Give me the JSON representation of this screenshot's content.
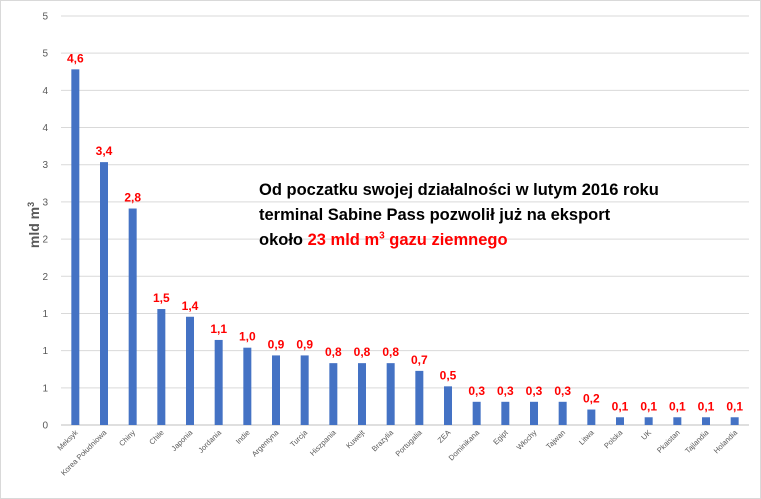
{
  "colors": {
    "bar": "#4472c4",
    "data_label": "#ff0000",
    "highlight": "#ff0000",
    "grid": "#d9d9d9"
  },
  "annotation": {
    "line1": "Od poczatku swojej działalności w lutym 2016 roku",
    "line2": "terminal Sabine Pass pozwolił już na eksport",
    "line3_prefix": "około ",
    "line3_highlight": "23 mld m",
    "line3_superscript": "3",
    "line3_suffix": " gazu ziemnego"
  },
  "chart_data": {
    "type": "bar",
    "title": "",
    "xlabel": "",
    "ylabel": "mld m",
    "ylabel_superscript": "3",
    "ylim": [
      0,
      5.29
    ],
    "grid": true,
    "legend": "none",
    "ytick_labels": [
      "0",
      "1",
      "1",
      "1",
      "2",
      "2",
      "3",
      "3",
      "4",
      "4",
      "5",
      "5"
    ],
    "categories": [
      "Meksyk",
      "Korea Południowa",
      "Chiny",
      "Chile",
      "Japonia",
      "Jordania",
      "Indie",
      "Argentyna",
      "Turcja",
      "Hiszpania",
      "Kuwejt",
      "Brazylia",
      "Portugalia",
      "ZEA",
      "Dominikana",
      "Egipt",
      "Włochy",
      "Tajwan",
      "Litwa",
      "Polska",
      "UK",
      "Pkaistan",
      "Tajlandia",
      "Holandia"
    ],
    "values": [
      4.6,
      3.4,
      2.8,
      1.5,
      1.4,
      1.1,
      1.0,
      0.9,
      0.9,
      0.8,
      0.8,
      0.8,
      0.7,
      0.5,
      0.3,
      0.3,
      0.3,
      0.3,
      0.2,
      0.1,
      0.1,
      0.1,
      0.1,
      0.1
    ],
    "data_labels": [
      "4,6",
      "3,4",
      "2,8",
      "1,5",
      "1,4",
      "1,1",
      "1,0",
      "0,9",
      "0,9",
      "0,8",
      "0,8",
      "0,8",
      "0,7",
      "0,5",
      "0,3",
      "0,3",
      "0,3",
      "0,3",
      "0,2",
      "0,1",
      "0,1",
      "0,1",
      "0,1",
      "0,1"
    ]
  }
}
